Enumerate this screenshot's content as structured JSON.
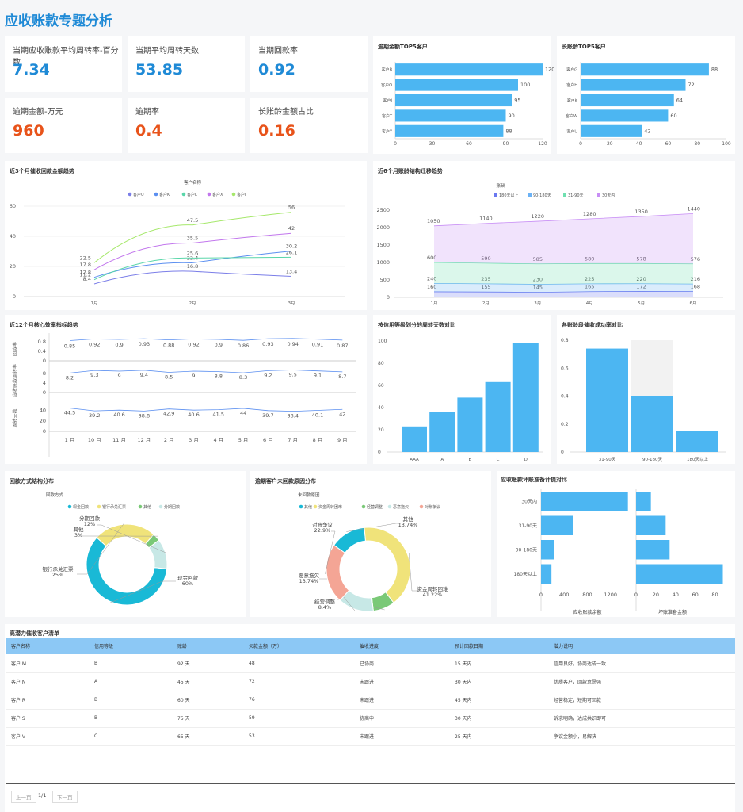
{
  "page_title": "应收账款专题分析",
  "colors": {
    "blue": "#4cb6f2",
    "orange": "#e8531a",
    "kpi_blue": "#1f8ad6"
  },
  "kpis": [
    {
      "label": "当期应收账款平均周转率-百分数",
      "value": "7.34"
    },
    {
      "label": "当期平均周转天数",
      "value": "53.85"
    },
    {
      "label": "当期回款率",
      "value": "0.92"
    },
    {
      "label": "逾期金额-万元",
      "value": "960"
    },
    {
      "label": "逾期率",
      "value": "0.4"
    },
    {
      "label": "长账龄金额占比",
      "value": "0.16"
    }
  ],
  "charts": {
    "top5_overdue": {
      "title": "逾期金额TOP5客户"
    },
    "top5_aging": {
      "title": "长账龄TOP5客户"
    },
    "collection_trend": {
      "title": "近3个月催收回款金额趋势",
      "legend_title": "客户名称"
    },
    "aging_trend": {
      "title": "近6个月账龄结构迁移趋势",
      "legend_title": "账龄"
    },
    "kpi12": {
      "title": "近12个月核心效率指标趋势"
    },
    "credit_turnover": {
      "title": "按信用等级划分的周转天数对比"
    },
    "aging_success": {
      "title": "各账龄段催收成功率对比"
    },
    "payment_method": {
      "title": "回款方式结构分布",
      "legend_title": "回款方式"
    },
    "unpaid_reason": {
      "title": "逾期客户未回款原因分布",
      "legend_title": "未回款原因"
    },
    "bad_debt": {
      "title": "应收账款坏账准备计提对比"
    }
  },
  "chart_data": [
    {
      "id": "top5_overdue",
      "type": "bar",
      "orientation": "horizontal",
      "categories": [
        "客户B",
        "客户O",
        "客户I",
        "客户T",
        "客户Y"
      ],
      "values": [
        120,
        100,
        95,
        90,
        88
      ],
      "xlim": [
        0,
        120
      ],
      "xticks": [
        0,
        30,
        60,
        90,
        120
      ]
    },
    {
      "id": "top5_aging",
      "type": "bar",
      "orientation": "horizontal",
      "categories": [
        "客户G",
        "客户H",
        "客户K",
        "客户W",
        "客户U"
      ],
      "values": [
        88,
        72,
        64,
        60,
        42
      ],
      "xlim": [
        0,
        100
      ],
      "xticks": [
        0,
        20,
        40,
        60,
        80,
        100
      ]
    },
    {
      "id": "collection_trend",
      "type": "line",
      "x": [
        "1月",
        "2月",
        "3月"
      ],
      "ylim": [
        0,
        60
      ],
      "yticks": [
        0,
        20,
        40,
        60
      ],
      "series": [
        {
          "name": "客户U",
          "color": "#7b7ee8",
          "values": [
            8.4,
            16.8,
            13.4
          ]
        },
        {
          "name": "客户K",
          "color": "#5b8ff0",
          "values": [
            12.8,
            22.4,
            30.2
          ]
        },
        {
          "name": "客户L",
          "color": "#59d6a9",
          "values": [
            11.2,
            25.6,
            26.1
          ]
        },
        {
          "name": "客户X",
          "color": "#c277ed",
          "values": [
            17.8,
            35.5,
            42
          ]
        },
        {
          "name": "客户I",
          "color": "#a6e86b",
          "values": [
            22.5,
            47.5,
            56
          ]
        }
      ]
    },
    {
      "id": "aging_trend",
      "type": "area",
      "stacked": true,
      "x": [
        "1月",
        "2月",
        "3月",
        "4月",
        "5月",
        "6月"
      ],
      "ylim": [
        0,
        2500
      ],
      "yticks": [
        0,
        500,
        1000,
        1500,
        2000,
        2500
      ],
      "series": [
        {
          "name": "180天以上",
          "color": "#6a78f0",
          "values": [
            160,
            155,
            145,
            165,
            172,
            168
          ]
        },
        {
          "name": "90-180天",
          "color": "#6bb2f5",
          "values": [
            240,
            235,
            230,
            225,
            220,
            216
          ]
        },
        {
          "name": "31-90天",
          "color": "#6fe0b0",
          "values": [
            600,
            590,
            585,
            580,
            578,
            576
          ]
        },
        {
          "name": "30天内",
          "color": "#c88ef5",
          "values": [
            1050,
            1140,
            1220,
            1280,
            1350,
            1440
          ]
        }
      ]
    },
    {
      "id": "kpi12",
      "type": "line",
      "x": [
        "1 月",
        "10 月",
        "11 月",
        "12 月",
        "2 月",
        "3 月",
        "4 月",
        "5 月",
        "6 月",
        "7 月",
        "8 月",
        "9 月"
      ],
      "series": [
        {
          "name": "回款率",
          "values": [
            0.85,
            0.92,
            0.9,
            0.93,
            0.88,
            0.92,
            0.9,
            0.86,
            0.93,
            0.94,
            0.91,
            0.87
          ],
          "yticks": [
            0,
            0.4,
            0.8
          ]
        },
        {
          "name": "应收账款周转率",
          "values": [
            8.2,
            9.3,
            9,
            9.4,
            8.5,
            9,
            8.8,
            8.3,
            9.2,
            9.5,
            9.1,
            8.7
          ],
          "yticks": [
            0,
            4,
            8
          ]
        },
        {
          "name": "周转天数",
          "values": [
            44.5,
            39.2,
            40.6,
            38.8,
            42.9,
            40.6,
            41.5,
            44,
            39.7,
            38.4,
            40.1,
            42
          ],
          "yticks": [
            0,
            20,
            40
          ]
        }
      ]
    },
    {
      "id": "credit_turnover",
      "type": "bar",
      "categories": [
        "AAA",
        "A",
        "B",
        "C",
        "D"
      ],
      "values": [
        23,
        36,
        49,
        63,
        98
      ],
      "ylim": [
        0,
        100
      ],
      "yticks": [
        0,
        20,
        40,
        60,
        80,
        100
      ]
    },
    {
      "id": "aging_success",
      "type": "bar",
      "categories": [
        "31-90天",
        "90-180天",
        "180天以上"
      ],
      "values": [
        0.74,
        0.4,
        0.15
      ],
      "ylim": [
        0,
        0.8
      ],
      "yticks": [
        0,
        0.2,
        0.4,
        0.6,
        0.8
      ]
    },
    {
      "id": "payment_method",
      "type": "pie",
      "donut": true,
      "series": [
        {
          "name": "现金回款",
          "value": 60,
          "label": "现金回款\n60%",
          "color": "#19b9d6"
        },
        {
          "name": "银行承兑汇票",
          "value": 25,
          "label": "银行承兑汇票\n25%",
          "color": "#f0e37a"
        },
        {
          "name": "其他",
          "value": 3,
          "label": "其他\n3%",
          "color": "#7ac977"
        },
        {
          "name": "分期回款",
          "value": 12,
          "label": "分期回款\n12%",
          "color": "#c7e8e6"
        }
      ]
    },
    {
      "id": "unpaid_reason",
      "type": "pie",
      "donut": true,
      "series": [
        {
          "name": "其他",
          "value": 13.74,
          "label": "其他\n13.74%",
          "color": "#19b9d6"
        },
        {
          "name": "资金周转困难",
          "value": 41.22,
          "label": "资金周转困难\n41.22%",
          "color": "#f0e37a"
        },
        {
          "name": "经营调整",
          "value": 8.4,
          "label": "经营调整\n8.4%",
          "color": "#7ac977"
        },
        {
          "name": "恶意拖欠",
          "value": 13.74,
          "label": "恶意拖欠\n13.74%",
          "color": "#c7e8e6"
        },
        {
          "name": "对账争议",
          "value": 22.9,
          "label": "对账争议\n22.9%",
          "color": "#f4a595"
        }
      ]
    },
    {
      "id": "bad_debt",
      "type": "bar",
      "orientation": "horizontal",
      "categories": [
        "30天内",
        "31-90天",
        "90-180天",
        "180天以上"
      ],
      "panels": [
        {
          "xlabel": "应收账款余额",
          "values": [
            1500,
            560,
            220,
            180
          ],
          "xlim": [
            0,
            1600
          ],
          "xticks": [
            0,
            400,
            800,
            1200
          ]
        },
        {
          "xlabel": "坏账准备金额",
          "values": [
            15,
            30,
            34,
            88
          ],
          "xlim": [
            0,
            90
          ],
          "xticks": [
            0,
            20,
            40,
            60,
            80
          ]
        }
      ]
    }
  ],
  "table": {
    "title": "高潜力催收客户清单",
    "headers": [
      "客户名称",
      "信用等级",
      "账龄",
      "欠款金额（万）",
      "催收进度",
      "预计回款日期",
      "潜力说明"
    ],
    "rows": [
      [
        "客户 M",
        "B",
        "92 天",
        "48",
        "已协商",
        "15 天内",
        "信用良好，协商达成一致"
      ],
      [
        "客户 N",
        "A",
        "45 天",
        "72",
        "未跟进",
        "30 天内",
        "优质客户，回款意愿强"
      ],
      [
        "客户 R",
        "B",
        "60 天",
        "76",
        "未跟进",
        "45 天内",
        "经营稳定，短期可回款"
      ],
      [
        "客户 S",
        "B",
        "75 天",
        "59",
        "协商中",
        "30 天内",
        "诉求明确，达成共识即可"
      ],
      [
        "客户 V",
        "C",
        "65 天",
        "53",
        "未跟进",
        "25 天内",
        "争议金额小，易解决"
      ]
    ]
  },
  "pagination": {
    "prev": "上一页",
    "current": "1/1",
    "next": "下一页"
  }
}
